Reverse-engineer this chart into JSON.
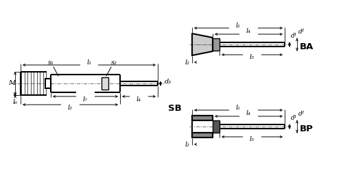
{
  "bg_color": "#ffffff",
  "line_color": "#000000",
  "SB": {
    "label": "SB",
    "M_label": "M",
    "s1_label": "s₁",
    "s2_label": "s₂",
    "l1_label": "l₁",
    "l2_label": "l₂",
    "l4_label": "l₄",
    "l6_label": "l₆",
    "l7_label": "l₇",
    "d3_label": "d₃"
  },
  "BA": {
    "label": "BA",
    "l2_label": "l₂",
    "l3_label": "l₃",
    "l4_label": "l₄",
    "l5_label": "l₅",
    "d1_label": "d¹",
    "d2_label": "d²"
  },
  "BP": {
    "label": "BP",
    "l2_label": "l₂",
    "l3_label": "l₃",
    "l4_label": "l₄",
    "l5_label": "l₅",
    "d1_label": "d¹",
    "d2_label": "d²"
  }
}
